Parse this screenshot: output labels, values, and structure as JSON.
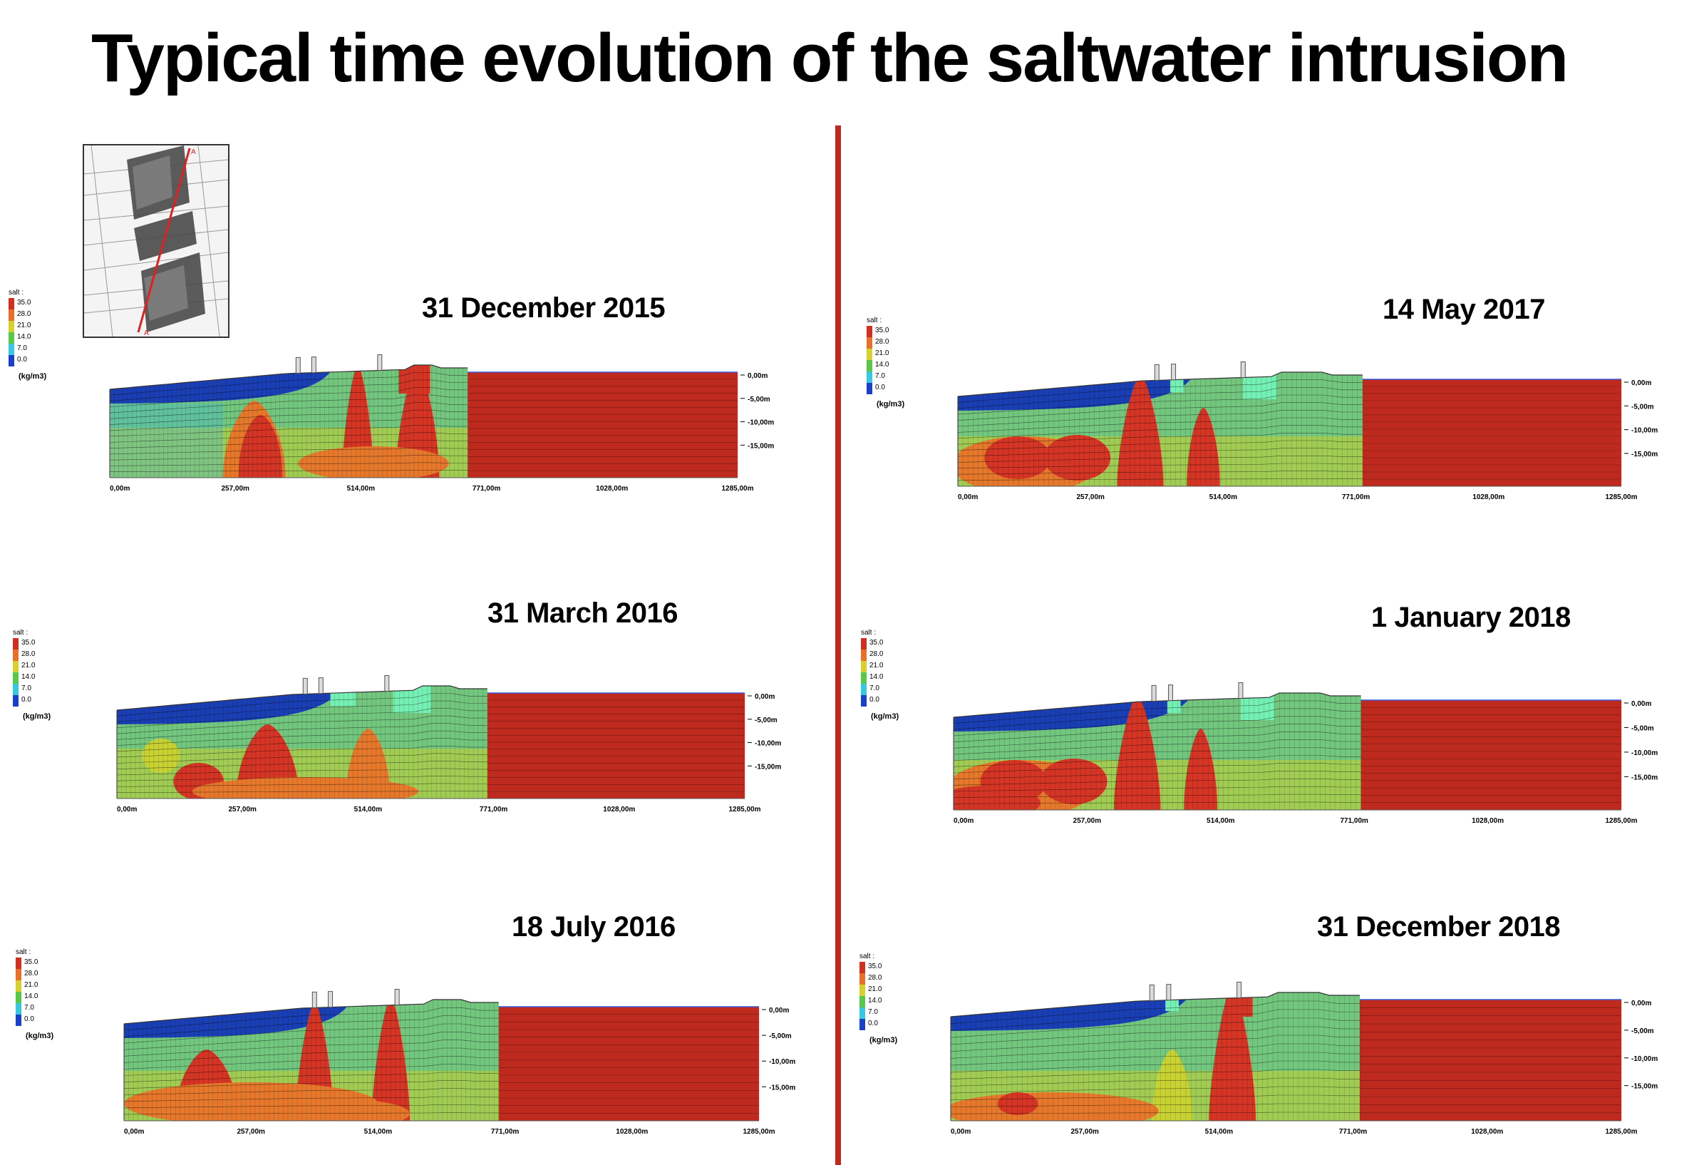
{
  "title": "Typical time evolution of the saltwater intrusion",
  "legend": {
    "title": "salt :",
    "unit": "(kg/m3)",
    "classes": [
      {
        "label": "35.0",
        "color": "#d03020"
      },
      {
        "label": "28.0",
        "color": "#e8702a"
      },
      {
        "label": "21.0",
        "color": "#d8d030"
      },
      {
        "label": "14.0",
        "color": "#58c848"
      },
      {
        "label": "7.0",
        "color": "#38c8e0"
      },
      {
        "label": "0.0",
        "color": "#1840c8"
      }
    ]
  },
  "axis": {
    "x_ticks": [
      "0,00m",
      "257,00m",
      "514,00m",
      "771,00m",
      "1028,00m",
      "1285,00m"
    ],
    "y_ticks": [
      "0,00m",
      "-5,00m",
      "-10,00m",
      "-15,00m"
    ]
  },
  "colors": {
    "sea": "#bf2a1e",
    "fresh": "#1a3fb4",
    "light_fresh": "#40b8d8",
    "brackish": "#72c67e",
    "light_brackish": "#74f0b4",
    "mixing": "#c8d232",
    "high": "#e5782b",
    "saltwater": "#d43524",
    "divider": "#c0281e"
  },
  "panels": [
    {
      "date": "31 December 2015"
    },
    {
      "date": "31 March 2016"
    },
    {
      "date": "18 July 2016"
    },
    {
      "date": "14 May  2017"
    },
    {
      "date": "1 January 2018"
    },
    {
      "date": "31 December 2018"
    }
  ]
}
